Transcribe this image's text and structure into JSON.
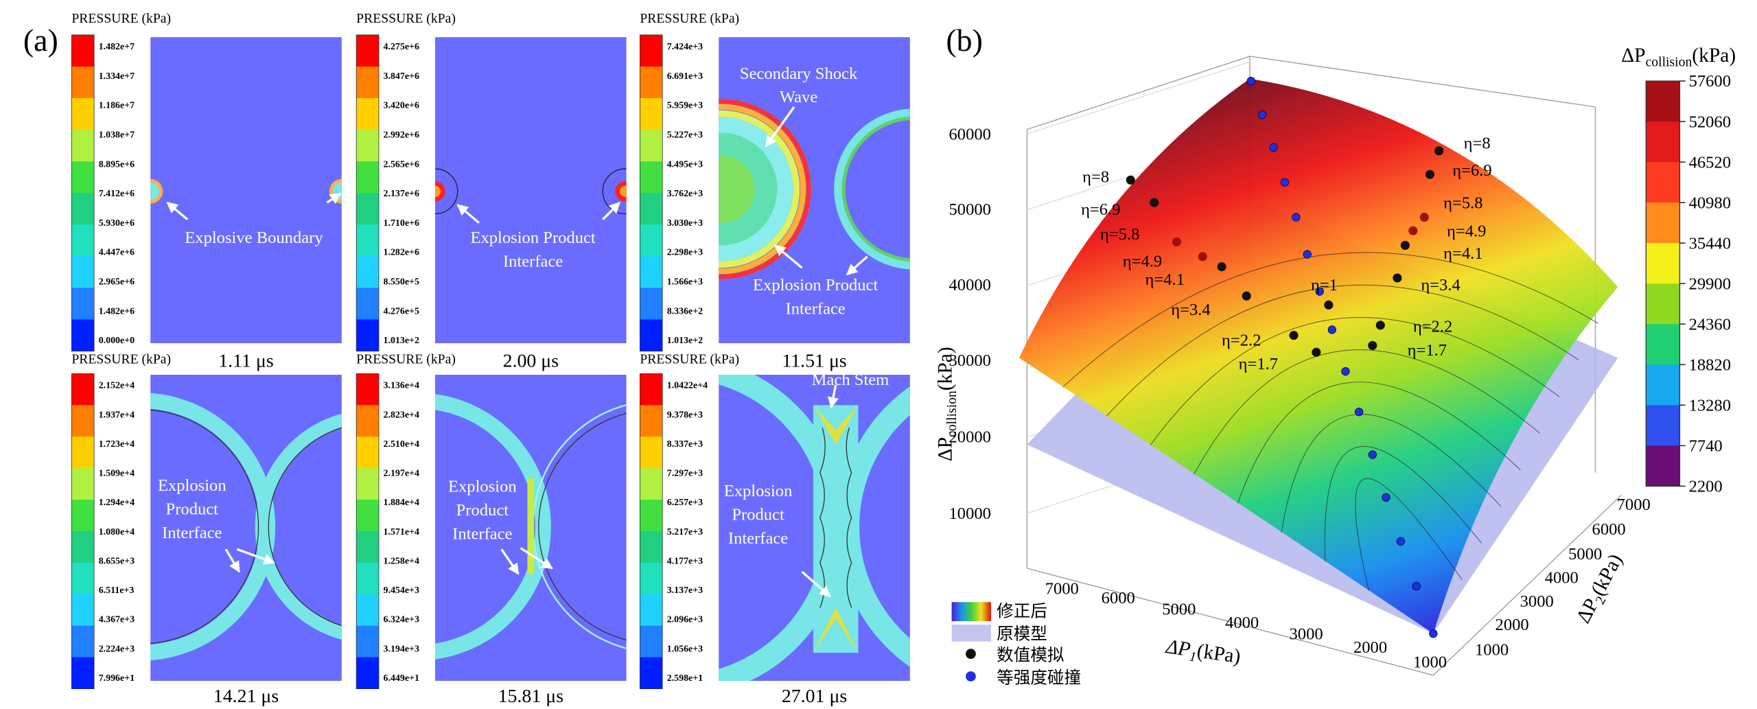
{
  "panel_a": {
    "label": "(a)",
    "legend_title": "PRESSURE (kPa)",
    "panels": [
      {
        "scale": [
          "1.482e+7",
          "1.334e+7",
          "1.186e+7",
          "1.038e+7",
          "8.895e+6",
          "7.412e+6",
          "5.930e+6",
          "4.447e+6",
          "2.965e+6",
          "1.482e+6",
          "0.000e+0"
        ],
        "time": "1.11 μs",
        "annotations": [
          [
            "Explosive Boundary"
          ]
        ]
      },
      {
        "scale": [
          "4.275e+6",
          "3.847e+6",
          "3.420e+6",
          "2.992e+6",
          "2.565e+6",
          "2.137e+6",
          "1.710e+6",
          "1.282e+6",
          "8.550e+5",
          "4.276e+5",
          "1.013e+2"
        ],
        "time": "2.00 μs",
        "annotations": [
          [
            "Explosion Product",
            "Interface"
          ]
        ]
      },
      {
        "scale": [
          "7.424e+3",
          "6.691e+3",
          "5.959e+3",
          "5.227e+3",
          "4.495e+3",
          "3.762e+3",
          "3.030e+3",
          "2.298e+3",
          "1.566e+3",
          "8.336e+2",
          "1.013e+2"
        ],
        "time": "11.51 μs",
        "annotations": [
          [
            "Secondary Shock",
            "Wave"
          ],
          [
            "Explosion Product",
            "Interface"
          ]
        ]
      },
      {
        "scale": [
          "2.152e+4",
          "1.937e+4",
          "1.723e+4",
          "1.509e+4",
          "1.294e+4",
          "1.080e+4",
          "8.655e+3",
          "6.511e+3",
          "4.367e+3",
          "2.224e+3",
          "7.996e+1"
        ],
        "time": "14.21 μs",
        "annotations": [
          [
            "Explosion",
            "Product",
            "Interface"
          ]
        ]
      },
      {
        "scale": [
          "3.136e+4",
          "2.823e+4",
          "2.510e+4",
          "2.197e+4",
          "1.884e+4",
          "1.571e+4",
          "1.258e+4",
          "9.454e+3",
          "6.324e+3",
          "3.194e+3",
          "6.449e+1"
        ],
        "time": "15.81 μs",
        "annotations": [
          [
            "Explosion",
            "Product",
            "Interface"
          ]
        ]
      },
      {
        "scale": [
          "1.0422e+4",
          "9.378e+3",
          "8.337e+3",
          "7.297e+3",
          "6.257e+3",
          "5.217e+3",
          "4.177e+3",
          "3.137e+3",
          "2.096e+3",
          "1.056e+3",
          "2.598e+1"
        ],
        "time": "27.01 μs",
        "annotations": [
          [
            "Mach Stem"
          ],
          [
            "Explosion",
            "Product",
            "Interface"
          ]
        ]
      }
    ]
  },
  "panel_b": {
    "label": "(b)",
    "colorbar_title": {
      "symbol": "ΔP",
      "subscript": "collision",
      "unit": "(kPa)"
    },
    "colorbar_ticks": [
      57600,
      52060,
      46520,
      40980,
      35440,
      29900,
      24360,
      18820,
      13280,
      7740,
      2200
    ],
    "z_label": {
      "symbol": "ΔP",
      "subscript": "collision",
      "unit": "(kPa)"
    },
    "z_ticks": [
      60000,
      50000,
      40000,
      30000,
      20000,
      10000
    ],
    "x_label": {
      "symbol": "ΔP",
      "subscript": "1",
      "unit": "(kPa)"
    },
    "x_ticks": [
      7000,
      6000,
      5000,
      4000,
      3000,
      2000,
      1000
    ],
    "y_label": {
      "symbol": "ΔP",
      "subscript": "2",
      "unit": "(kPa)"
    },
    "y_ticks": [
      1000,
      2000,
      3000,
      4000,
      5000,
      6000,
      7000
    ],
    "eta_labels": [
      "η=8",
      "η=6.9",
      "η=5.8",
      "η=4.9",
      "η=4.1",
      "η=3.4",
      "η=2.2",
      "η=1.7",
      "η=8",
      "η=6.9",
      "η=5.8",
      "η=4.9",
      "η=4.1",
      "η=3.4",
      "η=2.2",
      "η=1.7",
      "η=1"
    ],
    "legend": [
      "修正后",
      "原模型",
      "数值模拟",
      "等强度碰撞"
    ]
  }
}
